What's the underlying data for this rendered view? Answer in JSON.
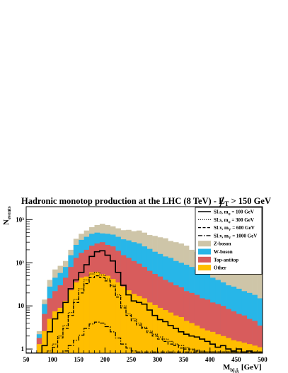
{
  "chart_data": {
    "type": "histogram",
    "title": "Hadronic monotop production at the LHC (8 TeV) - E_T > 150 GeV",
    "title_parts": {
      "main": "Hadronic monotop production at the LHC (8 TeV) - ",
      "met": "E",
      "met_sub": "T",
      "cut": " > 150 GeV"
    },
    "xlabel": {
      "main": "M",
      "sub": "bj₁j₂",
      "unit": " [GeV]"
    },
    "ylabel": {
      "main": "N",
      "sub": "events"
    },
    "x_range": [
      50,
      500
    ],
    "y_range": [
      0.8,
      2000
    ],
    "y_scale": "log",
    "x_ticks": [
      "50",
      "100",
      "150",
      "200",
      "250",
      "300",
      "350",
      "400",
      "450",
      "500"
    ],
    "y_ticks": [
      {
        "value": 1,
        "label": "1"
      },
      {
        "value": 10,
        "label": "10"
      },
      {
        "value": 100,
        "label": "10²"
      },
      {
        "value": 1000,
        "label": "10³"
      }
    ],
    "bin_width": 10,
    "bin_edges_start": 50,
    "stacked_background": [
      {
        "name": "Z-boson",
        "color": "#cec5a8",
        "values": [
          0,
          0,
          2.6,
          14,
          40,
          70,
          85,
          110,
          200,
          360,
          470,
          560,
          670,
          750,
          800,
          750,
          700,
          630,
          570,
          580,
          540,
          560,
          500,
          440,
          420,
          390,
          370,
          320,
          300,
          280,
          250,
          200,
          180,
          170,
          160,
          140,
          130,
          120,
          100,
          110,
          80,
          85,
          70,
          75,
          60
        ]
      },
      {
        "name": "W-boson",
        "color": "#27b6e8",
        "values": [
          0,
          0,
          2.2,
          11,
          28,
          45,
          58,
          80,
          150,
          260,
          340,
          400,
          470,
          500,
          480,
          470,
          450,
          400,
          350,
          330,
          300,
          280,
          240,
          210,
          180,
          160,
          140,
          130,
          110,
          100,
          90,
          80,
          70,
          60,
          55,
          45,
          40,
          35,
          30,
          28,
          25,
          22,
          20,
          18,
          15
        ]
      },
      {
        "name": "Top-antitop",
        "color": "#d85c5c",
        "values": [
          0,
          0,
          1.8,
          6.5,
          15,
          22,
          30,
          45,
          80,
          130,
          170,
          200,
          250,
          280,
          300,
          260,
          240,
          190,
          150,
          130,
          110,
          95,
          80,
          65,
          55,
          48,
          40,
          35,
          30,
          27,
          22,
          20,
          18,
          15,
          14,
          12,
          11,
          10,
          8.5,
          7.5,
          6.5,
          6,
          5,
          4.5,
          3.5
        ]
      },
      {
        "name": "Other",
        "color": "#ffbe00",
        "values": [
          0,
          0,
          1.3,
          2.6,
          5,
          7.5,
          9,
          13,
          23,
          35,
          45,
          48,
          60,
          62,
          55,
          50,
          42,
          35,
          28,
          23,
          19,
          17,
          15,
          12,
          10.5,
          9,
          8,
          7,
          6,
          5.5,
          4.5,
          4,
          3.5,
          3,
          2.7,
          2.5,
          2.2,
          2,
          1.8,
          1.6,
          1.5,
          1.4,
          1.3,
          1.2,
          1.1
        ]
      }
    ],
    "signal_lines": [
      {
        "name": "SI.s, m_φ = 100 GeV",
        "label_main": "SI.s, m",
        "label_sub": "φ",
        "label_rest": " = 100 GeV",
        "style": "solid",
        "width": 1.6,
        "values": [
          0,
          0,
          0,
          1.2,
          2.5,
          5,
          7,
          12,
          25,
          40,
          60,
          90,
          140,
          180,
          190,
          150,
          110,
          60,
          30,
          18,
          13,
          12,
          11,
          8,
          6,
          4.8,
          4.3,
          3.5,
          3,
          2.5,
          2.2,
          2,
          1.9,
          1.7,
          1.5,
          1.3,
          1.1,
          1.2,
          1,
          0.9,
          1,
          0.85,
          0.9,
          0.8,
          0.8
        ]
      },
      {
        "name": "SI.s, m_φ = 300 GeV",
        "label_main": "SI.s, m",
        "label_sub": "φ",
        "label_rest": " = 300 GeV",
        "style": "dotted",
        "width": 1.2,
        "values": [
          0,
          0,
          0,
          0,
          0.9,
          1.3,
          2,
          3.5,
          7,
          14,
          25,
          40,
          55,
          60,
          52,
          42,
          30,
          18,
          10,
          6.5,
          5,
          4,
          3.2,
          2.6,
          2.2,
          1.9,
          1.7,
          1.5,
          1.3,
          1.2,
          1.1,
          1,
          0.95,
          0.9,
          0.85,
          0.85,
          0.85,
          0.85,
          0.85,
          0.85,
          0.85,
          0.85,
          0.85,
          0.85,
          0.85
        ]
      },
      {
        "name": "SI.v, m_V = 600 GeV",
        "label_main": "SI.v, m",
        "label_sub": "V",
        "label_rest": " = 600 GeV",
        "style": "dashed",
        "width": 1.2,
        "values": [
          0,
          0,
          0,
          0,
          0.8,
          1.1,
          1.8,
          3,
          6,
          12,
          20,
          33,
          45,
          50,
          45,
          38,
          28,
          16,
          9,
          6,
          4.5,
          3.6,
          3,
          2.4,
          2,
          1.7,
          1.5,
          1.3,
          1.2,
          1.05,
          1,
          0.95,
          0.9,
          0.85,
          0.85,
          0.85,
          0.85,
          0.85,
          0.85,
          0.85,
          0.85,
          0.85,
          0.85,
          0.85,
          0.85
        ]
      },
      {
        "name": "SI.v, m_V = 1000 GeV",
        "label_main": "SI.v, m",
        "label_sub": "V",
        "label_rest": " = 1000 GeV",
        "style": "dashdot",
        "width": 1.2,
        "values": [
          0,
          0,
          0,
          0,
          0,
          0,
          0,
          0.9,
          1.2,
          1.6,
          2.1,
          3,
          3.8,
          4.2,
          4,
          3.3,
          2.5,
          1.8,
          1.3,
          1.05,
          0.9,
          0.85,
          0.85,
          0.85,
          0.85,
          0.85,
          0.85,
          0.85,
          0.85,
          0.85,
          0.85,
          0.85,
          0.85,
          0.85,
          0.85,
          0.85,
          0.85,
          0.85,
          0.85,
          0.85,
          0.85,
          0.85,
          0.85,
          0.85,
          0.85
        ]
      }
    ],
    "legend_position": "top-right",
    "grid": false
  }
}
